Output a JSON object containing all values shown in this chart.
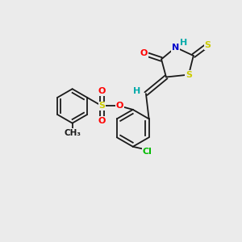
{
  "background_color": "#ebebeb",
  "bond_color": "#1a1a1a",
  "atom_colors": {
    "O": "#ff0000",
    "N": "#0000cc",
    "S": "#cccc00",
    "Cl": "#00bb00",
    "H": "#00aaaa",
    "C": "#1a1a1a"
  },
  "font_size": 8,
  "figsize": [
    3.0,
    3.0
  ],
  "dpi": 100
}
